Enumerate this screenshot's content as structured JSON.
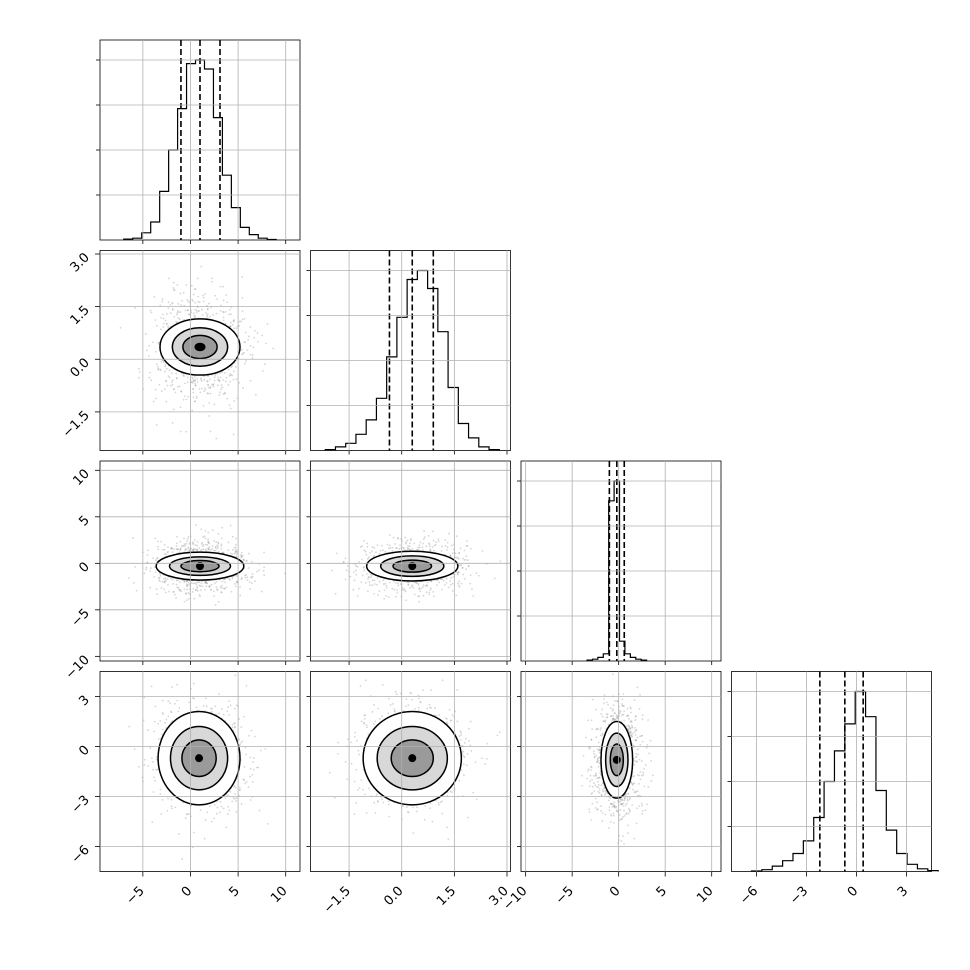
{
  "chart_data": {
    "type": "corner",
    "title": "",
    "grid": true,
    "parameters": [
      {
        "range": [
          -9.5,
          11.5
        ],
        "ticks": [
          -5,
          0,
          5,
          10
        ],
        "tick_labels": [
          "−5",
          "0",
          "5",
          "10"
        ],
        "quantiles": [
          -1.0,
          1.0,
          3.1
        ],
        "mean": 1.0,
        "sd": 2.0,
        "hist_counts": [
          0.5,
          1,
          4,
          10,
          27,
          50,
          73,
          98,
          100,
          95,
          68,
          36,
          18,
          7,
          3,
          1,
          0.3
        ]
      },
      {
        "range": [
          -2.6,
          3.1
        ],
        "ticks": [
          -1.5,
          0.0,
          1.5,
          3.0
        ],
        "tick_labels": [
          "−1.5",
          "0.0",
          "1.5",
          "3.0"
        ],
        "quantiles": [
          -0.35,
          0.3,
          0.9
        ],
        "mean": 0.3,
        "sd": 0.62,
        "hist_counts": [
          0.5,
          2,
          4,
          9,
          17,
          29,
          52,
          74,
          95,
          100,
          90,
          66,
          35,
          15,
          7,
          2,
          0.5
        ]
      },
      {
        "range": [
          -10.5,
          11
        ],
        "ticks": [
          -10,
          -5,
          0,
          5,
          10
        ],
        "tick_labels": [
          "−10",
          "−5",
          "0",
          "5",
          "10"
        ],
        "quantiles": [
          -1.0,
          -0.2,
          0.6
        ],
        "mean": -0.2,
        "sd": 0.8,
        "hist_counts": [
          0.5,
          1,
          2,
          4,
          89,
          100,
          11,
          4,
          2,
          1,
          0.5
        ]
      },
      {
        "range": [
          -7.5,
          4.5
        ],
        "ticks": [
          -6,
          -3,
          0,
          3
        ],
        "tick_labels": [
          "−6",
          "−3",
          "0",
          "3"
        ],
        "quantiles": [
          -2.2,
          -0.7,
          0.4
        ],
        "mean": -0.7,
        "sd": 1.4,
        "hist_counts": [
          0.3,
          1,
          3,
          6,
          10,
          17,
          30,
          50,
          67,
          82,
          100,
          86,
          45,
          23,
          10,
          4,
          1.5,
          0.5
        ]
      }
    ],
    "pairs": [
      {
        "x": 0,
        "y": 1,
        "center": [
          1.0,
          0.35
        ],
        "sigma": [
          2.0,
          0.65
        ],
        "contours": [
          "4.2 0.8",
          "2.9 0.55",
          "1.8 0.33",
          "0.5 0.1"
        ]
      },
      {
        "x": 0,
        "y": 2,
        "center": [
          1.0,
          -0.3
        ],
        "sigma": [
          2.1,
          1.1
        ],
        "contours": [
          "4.6 1.5",
          "3.2 1.0",
          "2.0 0.6"
        ]
      },
      {
        "x": 1,
        "y": 2,
        "center": [
          0.3,
          -0.3
        ],
        "sigma": [
          0.65,
          1.1
        ],
        "contours": [
          "1.3 1.6",
          "0.9 1.1",
          "0.55 0.65"
        ]
      },
      {
        "x": 0,
        "y": 3,
        "center": [
          0.9,
          -0.7
        ],
        "sigma": [
          2.0,
          1.35
        ],
        "contours": [
          "4.3 2.8",
          "3.0 1.9",
          "1.8 1.1"
        ]
      },
      {
        "x": 1,
        "y": 3,
        "center": [
          0.3,
          -0.7
        ],
        "sigma": [
          0.65,
          1.35
        ],
        "contours": [
          "1.4 2.8",
          "1.0 1.9",
          "0.6 1.1"
        ]
      },
      {
        "x": 2,
        "y": 3,
        "center": [
          -0.2,
          -0.8
        ],
        "sigma": [
          1.1,
          1.45
        ],
        "contours": [
          "1.7 2.3",
          "1.2 1.6",
          "0.7 0.95"
        ]
      }
    ]
  }
}
